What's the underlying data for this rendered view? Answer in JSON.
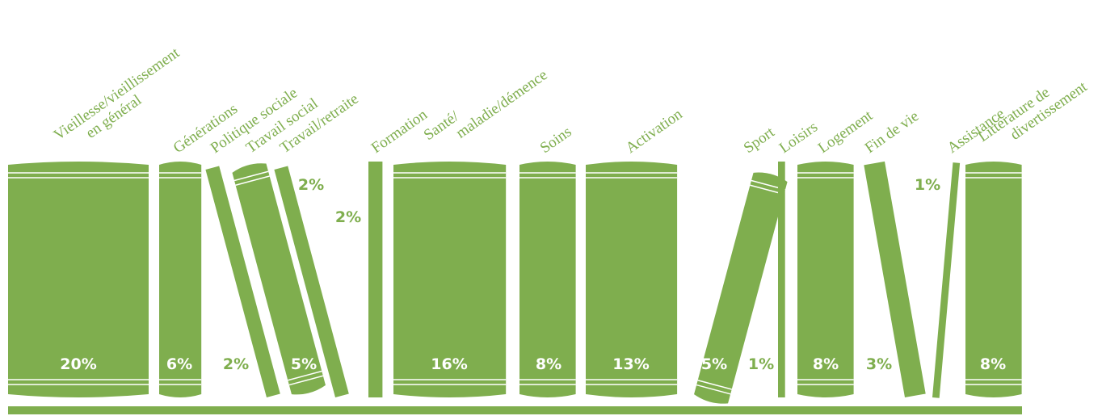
{
  "chart_data": {
    "type": "bookshelf",
    "color": "#7fae4e",
    "categories": [
      "Vieillesse/vieillissement\nen général",
      "Générations",
      "Politique sociale",
      "Travail social",
      "Travail/retraite",
      "Formation",
      "Santé/\nmaladie/démence",
      "Soins",
      "Activation",
      "Sport",
      "Loisirs",
      "Logement",
      "Fin de vie",
      "Assistance",
      "Littérature de\ndivertissement"
    ],
    "values": [
      20,
      6,
      2,
      5,
      2,
      2,
      16,
      8,
      13,
      5,
      1,
      8,
      3,
      1,
      8
    ],
    "value_labels": [
      "20%",
      "6%",
      "2%",
      "5%",
      "2%",
      "2%",
      "16%",
      "8%",
      "13%",
      "5%",
      "1%",
      "8%",
      "3%",
      "1%",
      "8%"
    ]
  }
}
